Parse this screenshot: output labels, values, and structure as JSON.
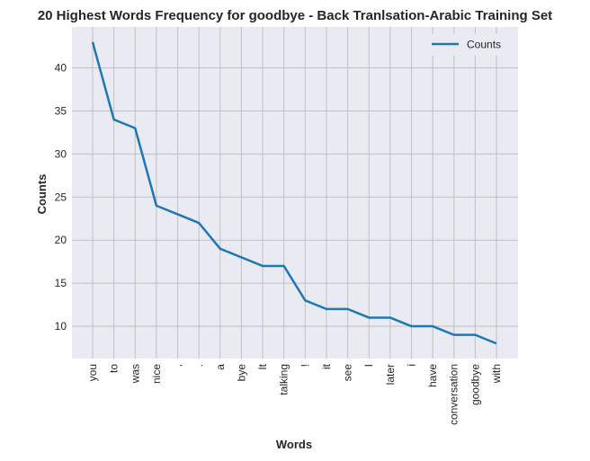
{
  "chart_data": {
    "type": "line",
    "title": "20 Highest Words Frequency for goodbye - Back Tranlsation-Arabic Training Set",
    "xlabel": "Words",
    "ylabel": "Counts",
    "categories": [
      "you",
      "to",
      "was",
      "nice",
      ",",
      ".",
      "a",
      "bye",
      "It",
      "talking",
      "!",
      "it",
      "see",
      "I",
      "later",
      "i",
      "have",
      "conversation",
      "goodbye",
      "with"
    ],
    "series": [
      {
        "name": "Counts",
        "values": [
          43,
          34,
          33,
          24,
          23,
          22,
          19,
          18,
          17,
          17,
          13,
          12,
          12,
          11,
          11,
          10,
          10,
          9,
          9,
          8
        ],
        "color": "#1f77b4"
      }
    ],
    "ylim": [
      6.25,
      44.75
    ],
    "yticks": [
      10,
      15,
      20,
      25,
      30,
      35,
      40
    ],
    "grid": true,
    "legend_position": "top-right",
    "background_color": "#eaeaf2",
    "grid_color": "#c0c0c0"
  }
}
